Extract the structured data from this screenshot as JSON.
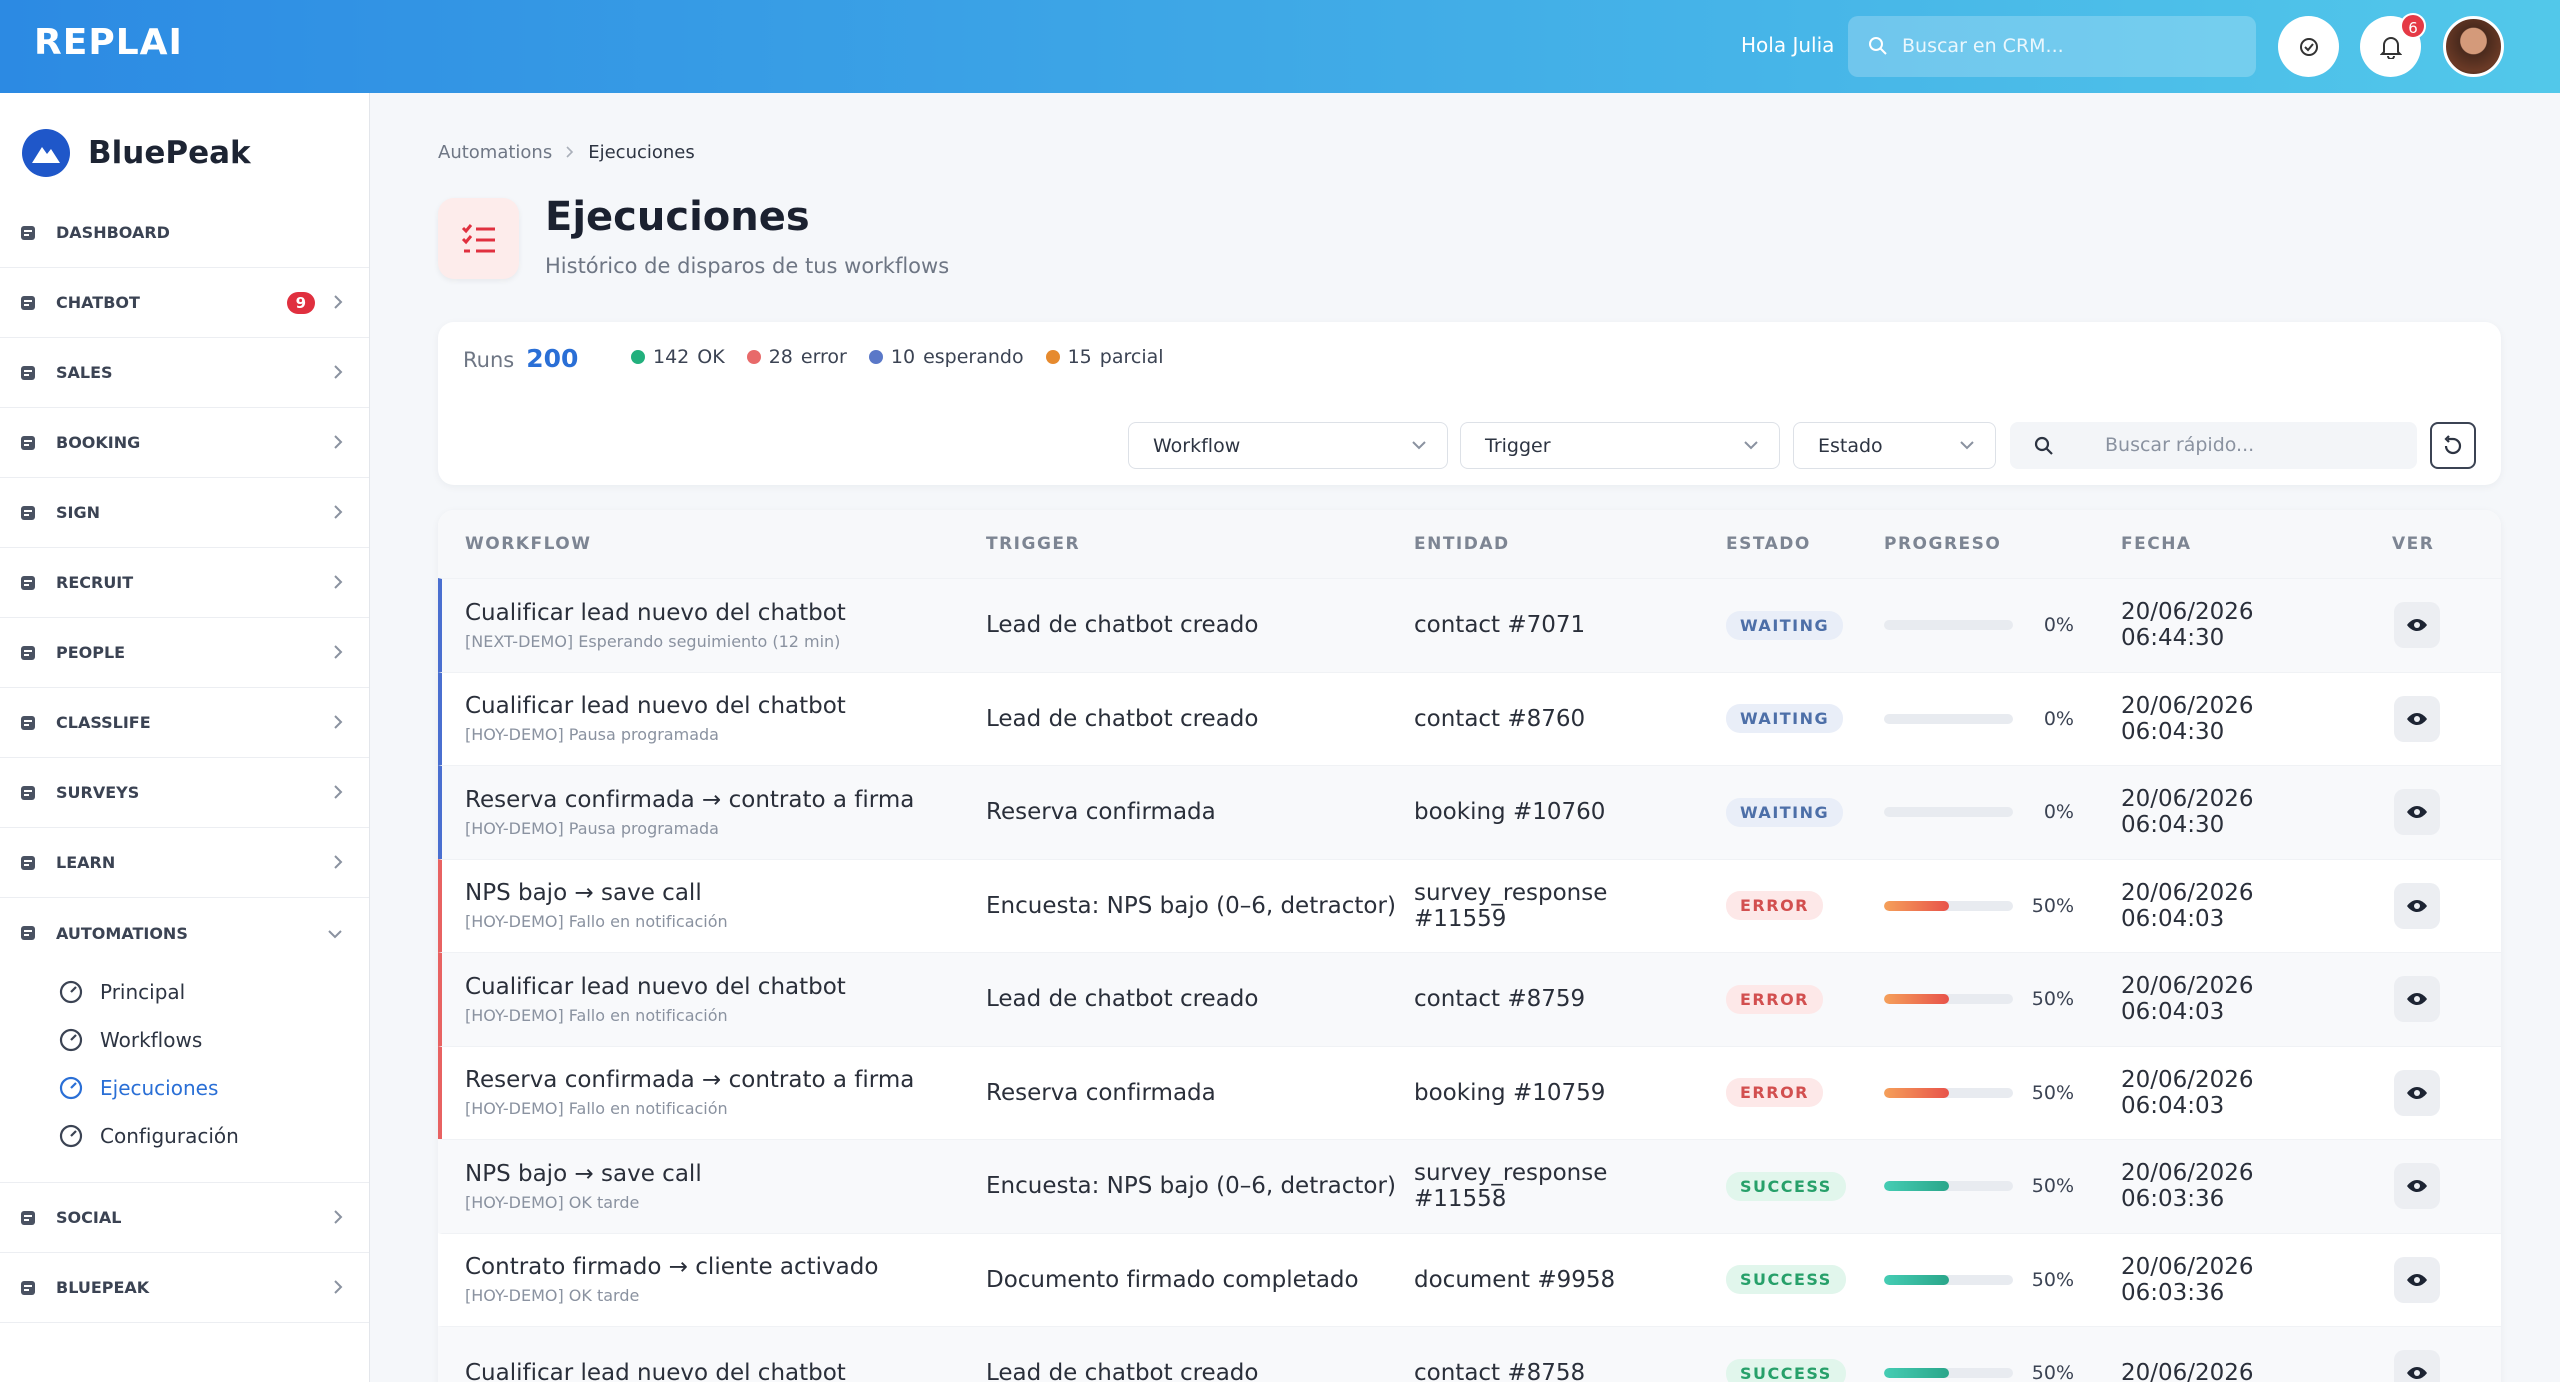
{
  "header": {
    "logo": "REPLAI",
    "greeting": "Hola Julia",
    "search_placeholder": "Buscar en CRM...",
    "notifications": 6
  },
  "sidebar": {
    "brand": "BluePeak",
    "items": [
      {
        "label": "DASHBOARD"
      },
      {
        "label": "CHATBOT",
        "badge": 9
      },
      {
        "label": "SALES"
      },
      {
        "label": "BOOKING"
      },
      {
        "label": "SIGN"
      },
      {
        "label": "RECRUIT"
      },
      {
        "label": "PEOPLE"
      },
      {
        "label": "CLASSLIFE"
      },
      {
        "label": "SURVEYS"
      },
      {
        "label": "LEARN"
      },
      {
        "label": "AUTOMATIONS",
        "children": [
          {
            "label": "Principal"
          },
          {
            "label": "Workflows"
          },
          {
            "label": "Ejecuciones",
            "active": true
          },
          {
            "label": "Configuración"
          }
        ]
      },
      {
        "label": "SOCIAL"
      },
      {
        "label": "BLUEPEAK"
      }
    ]
  },
  "breadcrumb": [
    "Automations",
    "Ejecuciones"
  ],
  "page": {
    "title": "Ejecuciones",
    "subtitle": "Histórico de disparos de tus workflows"
  },
  "summary": {
    "runs_label": "Runs",
    "runs": 200,
    "stats": [
      {
        "count": 142,
        "label": "OK",
        "color": "#22b07d"
      },
      {
        "count": 28,
        "label": "error",
        "color": "#e86a6a"
      },
      {
        "count": 10,
        "label": "esperando",
        "color": "#5a78c8"
      },
      {
        "count": 15,
        "label": "parcial",
        "color": "#e68a2e"
      }
    ]
  },
  "filters": {
    "selects": [
      "Workflow",
      "Trigger",
      "Estado"
    ],
    "search_placeholder": "Buscar rápido..."
  },
  "table": {
    "columns": [
      "WORKFLOW",
      "TRIGGER",
      "ENTIDAD",
      "ESTADO",
      "PROGRESO",
      "FECHA",
      "VER"
    ],
    "rows": [
      {
        "workflow": "Cualificar lead nuevo del chatbot",
        "note": "[NEXT-DEMO] Esperando seguimiento (12 min)",
        "trigger": "Lead de chatbot creado",
        "entity": "contact #7071",
        "status": "WAITING",
        "progress": 0,
        "progress_label": "0%",
        "date": "20/06/2026",
        "time": "06:44:30"
      },
      {
        "workflow": "Cualificar lead nuevo del chatbot",
        "note": "[HOY-DEMO] Pausa programada",
        "trigger": "Lead de chatbot creado",
        "entity": "contact #8760",
        "status": "WAITING",
        "progress": 0,
        "progress_label": "0%",
        "date": "20/06/2026",
        "time": "06:04:30"
      },
      {
        "workflow": "Reserva confirmada → contrato a firma",
        "note": "[HOY-DEMO] Pausa programada",
        "trigger": "Reserva confirmada",
        "entity": "booking #10760",
        "status": "WAITING",
        "progress": 0,
        "progress_label": "0%",
        "date": "20/06/2026",
        "time": "06:04:30"
      },
      {
        "workflow": "NPS bajo → save call",
        "note": "[HOY-DEMO] Fallo en notificación",
        "trigger": "Encuesta: NPS bajo (0–6, detractor)",
        "entity": "survey_response #11559",
        "status": "ERROR",
        "progress": 50,
        "progress_label": "50%",
        "date": "20/06/2026",
        "time": "06:04:03"
      },
      {
        "workflow": "Cualificar lead nuevo del chatbot",
        "note": "[HOY-DEMO] Fallo en notificación",
        "trigger": "Lead de chatbot creado",
        "entity": "contact #8759",
        "status": "ERROR",
        "progress": 50,
        "progress_label": "50%",
        "date": "20/06/2026",
        "time": "06:04:03"
      },
      {
        "workflow": "Reserva confirmada → contrato a firma",
        "note": "[HOY-DEMO] Fallo en notificación",
        "trigger": "Reserva confirmada",
        "entity": "booking #10759",
        "status": "ERROR",
        "progress": 50,
        "progress_label": "50%",
        "date": "20/06/2026",
        "time": "06:04:03"
      },
      {
        "workflow": "NPS bajo → save call",
        "note": "[HOY-DEMO] OK tarde",
        "trigger": "Encuesta: NPS bajo (0–6, detractor)",
        "entity": "survey_response #11558",
        "status": "SUCCESS",
        "progress": 50,
        "progress_label": "50%",
        "date": "20/06/2026",
        "time": "06:03:36"
      },
      {
        "workflow": "Contrato firmado → cliente activado",
        "note": "[HOY-DEMO] OK tarde",
        "trigger": "Documento firmado completado",
        "entity": "document #9958",
        "status": "SUCCESS",
        "progress": 50,
        "progress_label": "50%",
        "date": "20/06/2026",
        "time": "06:03:36"
      },
      {
        "workflow": "Cualificar lead nuevo del chatbot",
        "trigger": "Lead de chatbot creado",
        "entity": "contact #8758",
        "status": "SUCCESS",
        "progress": 50,
        "progress_label": "50%",
        "date": "20/06/2026"
      }
    ]
  }
}
